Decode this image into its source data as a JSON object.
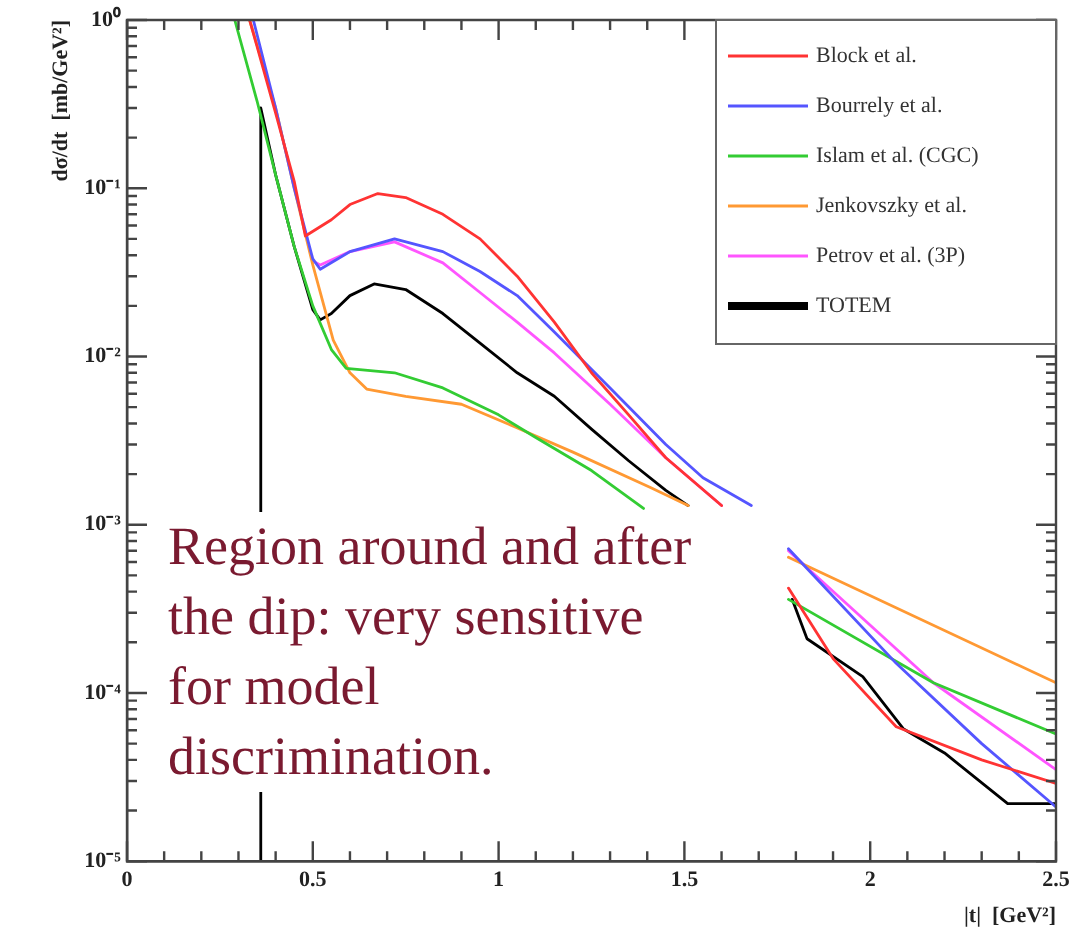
{
  "chart_data": {
    "type": "line",
    "xlabel": "|t|  [GeV²]",
    "ylabel": "dσ/dt  [mb/GeV²]",
    "log": "y",
    "xlim": [
      0,
      2.5
    ],
    "ylim": [
      1e-05,
      1
    ],
    "xticks": [
      0,
      0.5,
      1,
      1.5,
      2,
      2.5
    ],
    "yticks": [
      {
        "value": 1e-05,
        "label": "10⁻⁵"
      },
      {
        "value": 0.0001,
        "label": "10⁻⁴"
      },
      {
        "value": 0.001,
        "label": "10⁻³"
      },
      {
        "value": 0.01,
        "label": "10⁻²"
      },
      {
        "value": 0.1,
        "label": "10⁻¹"
      },
      {
        "value": 1,
        "label": "10⁰"
      }
    ],
    "grid": false,
    "legend": "top right",
    "marker": "none",
    "line_style": "solid",
    "annotations": [
      "Region around and after the dip: very sensitive for model discrimination."
    ],
    "series": [
      {
        "name": "Block et al.",
        "color": "#ff3333",
        "x": [
          0.33,
          0.4,
          0.45,
          0.48,
          0.55,
          0.6,
          0.675,
          0.75,
          0.85,
          0.95,
          1.05,
          1.15,
          1.25,
          1.35,
          1.45,
          1.6,
          1.7,
          1.78,
          1.9,
          2.07,
          2.3,
          2.5
        ],
        "values": [
          1,
          0.28,
          0.11,
          0.052,
          0.065,
          0.08,
          0.093,
          0.088,
          0.07,
          0.05,
          0.03,
          0.016,
          0.008,
          0.0045,
          0.0025,
          0.0013,
          null,
          0.00042,
          0.00016,
          6.3e-05,
          4e-05,
          2.9e-05
        ]
      },
      {
        "name": "Bourrely et al.",
        "color": "#5555ff",
        "x": [
          0.34,
          0.4,
          0.45,
          0.5,
          0.52,
          0.6,
          0.72,
          0.85,
          0.95,
          1.05,
          1.15,
          1.3,
          1.45,
          1.55,
          1.68,
          1.72,
          1.78,
          2.07,
          2.3,
          2.5
        ],
        "values": [
          1,
          0.3,
          0.1,
          0.038,
          0.033,
          0.042,
          0.05,
          0.042,
          0.032,
          0.023,
          0.014,
          0.0065,
          0.003,
          0.0019,
          0.0013,
          null,
          0.00072,
          0.00015,
          5e-05,
          2.1e-05
        ]
      },
      {
        "name": "Islam et al. (CGC)",
        "color": "#33cc33",
        "x": [
          0.29,
          0.35,
          0.4,
          0.45,
          0.5,
          0.55,
          0.59,
          0.72,
          0.85,
          1.0,
          1.1,
          1.25,
          1.39,
          1.5,
          1.78,
          2.17,
          2.5
        ],
        "values": [
          1,
          0.33,
          0.12,
          0.045,
          0.02,
          0.011,
          0.0085,
          0.008,
          0.0065,
          0.0045,
          0.0033,
          0.0021,
          0.00125,
          null,
          0.00036,
          0.000115,
          5.7e-05
        ]
      },
      {
        "name": "Jenkovszky et al.",
        "color": "#ff9933",
        "x": [
          0.33,
          0.4,
          0.45,
          0.5,
          0.555,
          0.6,
          0.645,
          0.75,
          0.9,
          1.046,
          1.2,
          1.41,
          1.51,
          1.6,
          1.78,
          2.5
        ],
        "values": [
          1,
          0.3,
          0.1,
          0.035,
          0.0125,
          0.008,
          0.0064,
          0.0058,
          0.0052,
          0.0038,
          0.0027,
          0.00166,
          0.0013,
          null,
          0.00064,
          0.000115
        ]
      },
      {
        "name": "Petrov et al. (3P)",
        "color": "#ff55ff",
        "x": [
          0.5,
          0.52,
          0.6,
          0.72,
          0.85,
          0.95,
          1.05,
          1.15,
          1.3,
          1.45,
          1.6,
          1.65,
          1.78,
          2.17,
          2.5
        ],
        "values": [
          0.037,
          0.035,
          0.042,
          0.048,
          0.036,
          0.024,
          0.016,
          0.0105,
          0.0052,
          0.0025,
          0.0013,
          null,
          0.0007,
          0.000115,
          3.5e-05
        ]
      },
      {
        "name": "TOTEM",
        "color": "#000000",
        "x": [
          0.36,
          0.36,
          0.4,
          0.45,
          0.5,
          0.52,
          0.55,
          0.6,
          0.665,
          0.75,
          0.85,
          0.95,
          1.05,
          1.15,
          1.25,
          1.35,
          1.45,
          1.51,
          1.6,
          1.79,
          1.83,
          1.98,
          2.09,
          2.2,
          2.37,
          2.5
        ],
        "values": [
          1e-05,
          0.3,
          0.12,
          0.045,
          0.019,
          0.0165,
          0.018,
          0.023,
          0.027,
          0.025,
          0.018,
          0.012,
          0.008,
          0.0058,
          0.0037,
          0.0024,
          0.0016,
          0.0013,
          null,
          0.00036,
          0.00021,
          0.000125,
          6.1e-05,
          4.4e-05,
          2.2e-05,
          2.2e-05
        ]
      }
    ]
  }
}
